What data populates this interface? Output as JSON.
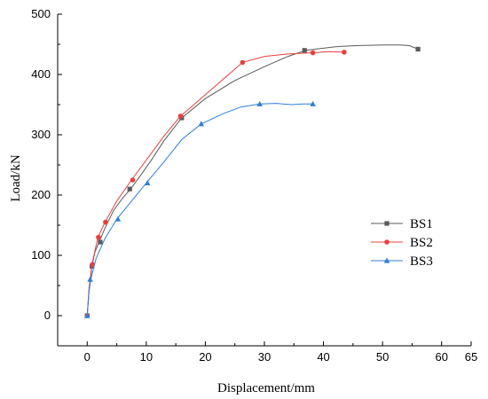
{
  "chart_data": {
    "type": "line",
    "title": "",
    "xlabel": "Displacement/mm",
    "ylabel": "Load/kN",
    "xlim": [
      -5,
      65
    ],
    "ylim": [
      -50,
      500
    ],
    "x_ticks": [
      0,
      10,
      20,
      30,
      40,
      50,
      60,
      65
    ],
    "y_ticks": [
      0,
      100,
      200,
      300,
      400,
      500
    ],
    "grid": false,
    "legend_position": "right",
    "series": [
      {
        "name": "BS1",
        "color": "#5a5a5a",
        "marker": "square",
        "x": [
          0,
          0.3,
          0.8,
          1.3,
          2,
          3,
          4.5,
          6,
          7.5,
          9,
          11,
          13,
          16,
          20,
          25,
          30,
          34,
          37,
          42,
          46,
          50,
          53,
          54.5,
          56
        ],
        "y": [
          0,
          40,
          82,
          105,
          122,
          145,
          175,
          195,
          212,
          232,
          260,
          290,
          328,
          360,
          390,
          413,
          430,
          440,
          446,
          448,
          449,
          449,
          448,
          442
        ],
        "markers": [
          [
            0,
            0
          ],
          [
            0.8,
            82
          ],
          [
            2.2,
            122
          ],
          [
            7.2,
            210
          ],
          [
            16,
            328
          ],
          [
            36.8,
            440
          ],
          [
            56,
            442
          ]
        ]
      },
      {
        "name": "BS2",
        "color": "#e8403e",
        "marker": "circle",
        "x": [
          0,
          0.3,
          0.8,
          1.8,
          3,
          5,
          7.5,
          10,
          13,
          15.8,
          19,
          23,
          26.3,
          30,
          34,
          38.2,
          41,
          43.5
        ],
        "y": [
          0,
          45,
          85,
          130,
          155,
          190,
          225,
          258,
          298,
          331,
          358,
          392,
          420,
          430,
          434,
          436,
          438,
          437
        ],
        "markers": [
          [
            0,
            0
          ],
          [
            0.9,
            85
          ],
          [
            1.9,
            130
          ],
          [
            3.1,
            155
          ],
          [
            7.7,
            225
          ],
          [
            15.8,
            331
          ],
          [
            26.3,
            420
          ],
          [
            38.2,
            436
          ],
          [
            43.5,
            437
          ]
        ]
      },
      {
        "name": "BS3",
        "color": "#2f7fd6",
        "marker": "triangle",
        "x": [
          0,
          0.3,
          0.6,
          1.5,
          3,
          5,
          7.5,
          10,
          13,
          16,
          19.3,
          23,
          26,
          29.2,
          32,
          34.5,
          36.5,
          38.2
        ],
        "y": [
          0,
          40,
          60,
          95,
          128,
          160,
          190,
          220,
          255,
          292,
          318,
          335,
          346,
          351,
          352,
          350,
          351,
          351
        ],
        "markers": [
          [
            0,
            0
          ],
          [
            0.5,
            60
          ],
          [
            5.2,
            160
          ],
          [
            10.2,
            220
          ],
          [
            19.3,
            318
          ],
          [
            29.2,
            351
          ],
          [
            38.2,
            351
          ]
        ]
      }
    ]
  }
}
